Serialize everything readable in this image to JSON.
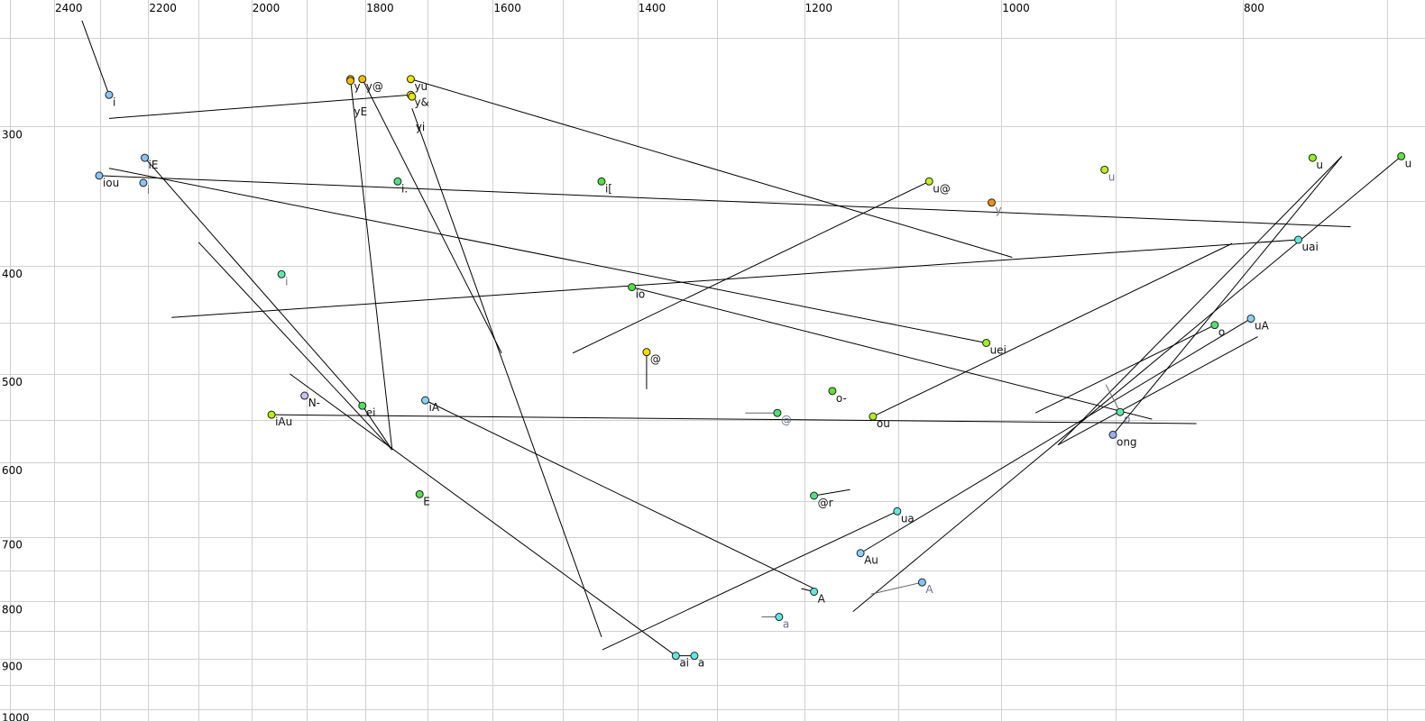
{
  "chart_data": {
    "type": "scatter",
    "title": "",
    "xlabel": "",
    "ylabel": "",
    "x_scale": "log",
    "y_scale": "log",
    "x_reversed": true,
    "y_reversed": true,
    "xlim": [
      2523,
      676
    ],
    "ylim": [
      231,
      1024
    ],
    "grid": true,
    "x_grid_step": 100,
    "y_grid_step": 50,
    "x_ticks": [
      "2400",
      "2200",
      "2000",
      "1800",
      "1600",
      "1400",
      "1200",
      "1000",
      "800"
    ],
    "y_ticks": [
      "300",
      "400",
      "500",
      "600",
      "700",
      "800",
      "900",
      "1000"
    ],
    "colors": {
      "grid": "#d0d0d0",
      "line": "#000000",
      "label": "#111111",
      "label_alt": "#707090"
    },
    "points": [
      {
        "label": "i",
        "f2": 2281,
        "f1": 281,
        "color": "#88c4f4",
        "alt": false
      },
      {
        "label": "y",
        "f2": 1825,
        "f1": 272,
        "color": "#f0c000",
        "alt": false
      },
      {
        "label": "yE",
        "f2": 1825,
        "f1": 273,
        "color": "#f0c000",
        "alt": false
      },
      {
        "label": "y@",
        "f2": 1805,
        "f1": 272,
        "color": "#f0c000",
        "alt": false
      },
      {
        "label": "yu",
        "f2": 1726,
        "f1": 272,
        "color": "#e8e800",
        "alt": false
      },
      {
        "label": "y&",
        "f2": 1726,
        "f1": 281,
        "color": "#e8e800",
        "alt": false
      },
      {
        "label": "yi",
        "f2": 1724,
        "f1": 282,
        "color": "#e8e800",
        "alt": false
      },
      {
        "label": "iE",
        "f2": 2207,
        "f1": 320,
        "color": "#88c4f4",
        "alt": false
      },
      {
        "label": "iou",
        "f2": 2302,
        "f1": 332,
        "color": "#88c4f4",
        "alt": false
      },
      {
        "label": "i",
        "f2": 2210,
        "f1": 337,
        "color": "#88c4f4",
        "alt": true
      },
      {
        "label": "i.",
        "f2": 1747,
        "f1": 336,
        "color": "#50e080",
        "alt": false
      },
      {
        "label": "i[",
        "f2": 1447,
        "f1": 336,
        "color": "#50e040",
        "alt": false
      },
      {
        "label": "u@",
        "f2": 1069,
        "f1": 336,
        "color": "#c0f020",
        "alt": false
      },
      {
        "label": "y",
        "f2": 1009,
        "f1": 351,
        "color": "#f09010",
        "alt": true
      },
      {
        "label": "u",
        "f2": 909,
        "f1": 328,
        "color": "#c0f020",
        "alt": true
      },
      {
        "label": "u",
        "f2": 750,
        "f1": 320,
        "color": "#90f020",
        "alt": false
      },
      {
        "label": "u",
        "f2": 691,
        "f1": 319,
        "color": "#60e040",
        "alt": false
      },
      {
        "label": "uai",
        "f2": 760,
        "f1": 379,
        "color": "#60e8e0",
        "alt": false
      },
      {
        "label": "i",
        "f2": 1945,
        "f1": 407,
        "color": "#60e8a8",
        "alt": true
      },
      {
        "label": "io",
        "f2": 1407,
        "f1": 418,
        "color": "#50e040",
        "alt": false
      },
      {
        "label": "uei",
        "f2": 1014,
        "f1": 469,
        "color": "#a0f020",
        "alt": false
      },
      {
        "label": "o",
        "f2": 821,
        "f1": 452,
        "color": "#50e070",
        "alt": false
      },
      {
        "label": "uA",
        "f2": 794,
        "f1": 446,
        "color": "#88d4f4",
        "alt": false
      },
      {
        "label": "@",
        "f2": 1388,
        "f1": 478,
        "color": "#f0e000",
        "alt": false
      },
      {
        "label": "o-",
        "f2": 1169,
        "f1": 518,
        "color": "#60e030",
        "alt": false
      },
      {
        "label": "@",
        "f2": 1230,
        "f1": 542,
        "color": "#50e070",
        "alt": true
      },
      {
        "label": "ou",
        "f2": 1126,
        "f1": 546,
        "color": "#b0f020",
        "alt": false
      },
      {
        "label": "N-",
        "f2": 1904,
        "f1": 523,
        "color": "#c8c0f0",
        "alt": false
      },
      {
        "label": "ei",
        "f2": 1805,
        "f1": 534,
        "color": "#50e060",
        "alt": false
      },
      {
        "label": "iA",
        "f2": 1703,
        "f1": 528,
        "color": "#88d4f4",
        "alt": false
      },
      {
        "label": "iAu",
        "f2": 1963,
        "f1": 544,
        "color": "#b8f000",
        "alt": false
      },
      {
        "label": "o",
        "f2": 896,
        "f1": 541,
        "color": "#60e8a8",
        "alt": true
      },
      {
        "label": "ong",
        "f2": 902,
        "f1": 567,
        "color": "#98b0f0",
        "alt": false
      },
      {
        "label": "E",
        "f2": 1712,
        "f1": 641,
        "color": "#50e050",
        "alt": false
      },
      {
        "label": "@r",
        "f2": 1189,
        "f1": 643,
        "color": "#50e080",
        "alt": false
      },
      {
        "label": "ua",
        "f2": 1101,
        "f1": 664,
        "color": "#60e8e0",
        "alt": false
      },
      {
        "label": "Au",
        "f2": 1139,
        "f1": 724,
        "color": "#88d4f4",
        "alt": false
      },
      {
        "label": "A",
        "f2": 1189,
        "f1": 784,
        "color": "#60e8e0",
        "alt": false
      },
      {
        "label": "A",
        "f2": 1076,
        "f1": 769,
        "color": "#88c4f4",
        "alt": true
      },
      {
        "label": "a",
        "f2": 1228,
        "f1": 826,
        "color": "#60e8e0",
        "alt": true
      },
      {
        "label": "ai",
        "f2": 1351,
        "f1": 895,
        "color": "#60e8e0",
        "alt": false
      },
      {
        "label": "a",
        "f2": 1328,
        "f1": 895,
        "color": "#60e8e0",
        "alt": false
      }
    ],
    "segments": [
      {
        "from": [
          2339,
          241
        ],
        "to": [
          2281,
          281
        ],
        "alt": false
      },
      {
        "from": [
          2281,
          295
        ],
        "to": [
          1726,
          281
        ],
        "alt": false
      },
      {
        "from": [
          1825,
          272
        ],
        "to": [
          1756,
          585
        ],
        "alt": false
      },
      {
        "from": [
          1805,
          272
        ],
        "to": [
          1587,
          479
        ],
        "alt": false
      },
      {
        "from": [
          1724,
          289
        ],
        "to": [
          1447,
          861
        ],
        "alt": false
      },
      {
        "from": [
          1726,
          272
        ],
        "to": [
          990,
          393
        ],
        "alt": false
      },
      {
        "from": [
          2302,
          332
        ],
        "to": [
          724,
          369
        ],
        "alt": false
      },
      {
        "from": [
          2281,
          327
        ],
        "to": [
          1014,
          469
        ],
        "alt": false
      },
      {
        "from": [
          1407,
          418
        ],
        "to": [
          870,
          549
        ],
        "alt": false
      },
      {
        "from": [
          2153,
          445
        ],
        "to": [
          760,
          379
        ],
        "alt": false
      },
      {
        "from": [
          1486,
          479
        ],
        "to": [
          1069,
          336
        ],
        "alt": false
      },
      {
        "from": [
          1963,
          544
        ],
        "to": [
          835,
          554
        ],
        "alt": false
      },
      {
        "from": [
          2207,
          320
        ],
        "to": [
          1805,
          534
        ],
        "alt": false
      },
      {
        "from": [
          2100,
          381
        ],
        "to": [
          1756,
          585
        ],
        "alt": false
      },
      {
        "from": [
          1805,
          534
        ],
        "to": [
          1756,
          585
        ],
        "alt": false
      },
      {
        "from": [
          1930,
          500
        ],
        "to": [
          1351,
          895
        ],
        "alt": false
      },
      {
        "from": [
          1351,
          895
        ],
        "to": [
          1328,
          895
        ],
        "alt": false
      },
      {
        "from": [
          1703,
          528
        ],
        "to": [
          1189,
          779
        ],
        "alt": false
      },
      {
        "from": [
          1388,
          478
        ],
        "to": [
          1388,
          516
        ],
        "alt": false
      },
      {
        "from": [
          1267,
          542
        ],
        "to": [
          1230,
          542
        ],
        "alt": true
      },
      {
        "from": [
          1189,
          643
        ],
        "to": [
          1150,
          635
        ],
        "alt": false
      },
      {
        "from": [
          1101,
          664
        ],
        "to": [
          1446,
          884
        ],
        "alt": false
      },
      {
        "from": [
          1139,
          724
        ],
        "to": [
          794,
          446
        ],
        "alt": false
      },
      {
        "from": [
          1147,
          817
        ],
        "to": [
          691,
          319
        ],
        "alt": false
      },
      {
        "from": [
          1126,
          546
        ],
        "to": [
          808,
          382
        ],
        "alt": false
      },
      {
        "from": [
          969,
          542
        ],
        "to": [
          821,
          452
        ],
        "alt": false
      },
      {
        "from": [
          949,
          579
        ],
        "to": [
          730,
          319
        ],
        "alt": false
      },
      {
        "from": [
          902,
          567
        ],
        "to": [
          730,
          319
        ],
        "alt": false
      },
      {
        "from": [
          949,
          579
        ],
        "to": [
          789,
          463
        ],
        "alt": false
      },
      {
        "from": [
          908,
          511
        ],
        "to": [
          896,
          541
        ],
        "alt": true
      },
      {
        "from": [
          1128,
          788
        ],
        "to": [
          1076,
          769
        ],
        "alt": true
      },
      {
        "from": [
          1248,
          826
        ],
        "to": [
          1228,
          826
        ],
        "alt": true
      },
      {
        "from": [
          1203,
          779
        ],
        "to": [
          1189,
          784
        ],
        "alt": false
      }
    ]
  }
}
